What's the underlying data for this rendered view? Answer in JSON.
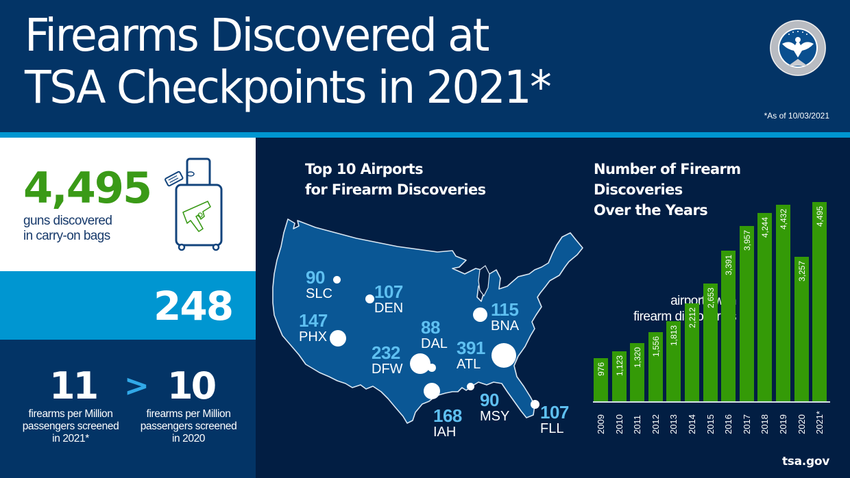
{
  "header": {
    "title_line1": "Firearms Discovered at",
    "title_line2": "TSA Checkpoints in 2021*",
    "as_of_note": "*As of 10/03/2021",
    "seal_text_top": "TRANSPORTATION SECURITY",
    "seal_text_bottom": "ADMINISTRATION"
  },
  "stats": {
    "guns_count": "4,495",
    "guns_label_line1": "guns discovered",
    "guns_label_line2": "in carry-on bags",
    "airports_label_line1": "airports with",
    "airports_label_line2": "firearm discoveries",
    "airports_count": "248",
    "rate_2021": "11",
    "comparison_symbol": ">",
    "rate_2020": "10",
    "rate_2021_line1": "firearms per Million",
    "rate_2021_line2": "passengers screened",
    "rate_2021_line3": "in 2021*",
    "rate_2020_line1": "firearms per Million",
    "rate_2020_line2": "passengers screened",
    "rate_2020_line3": "in 2020"
  },
  "map": {
    "title_line1": "Top 10 Airports",
    "title_line2": "for Firearm Discoveries",
    "airports": [
      {
        "code": "SLC",
        "count": "90"
      },
      {
        "code": "DEN",
        "count": "107"
      },
      {
        "code": "PHX",
        "count": "147"
      },
      {
        "code": "BNA",
        "count": "115"
      },
      {
        "code": "DAL",
        "count": "88"
      },
      {
        "code": "DFW",
        "count": "232"
      },
      {
        "code": "ATL",
        "count": "391"
      },
      {
        "code": "IAH",
        "count": "168"
      },
      {
        "code": "MSY",
        "count": "90"
      },
      {
        "code": "FLL",
        "count": "107"
      }
    ]
  },
  "chart_title": {
    "line1": "Number of Firearm",
    "line2": "Discoveries",
    "line3": "Over the Years"
  },
  "chart_data": [
    {
      "type": "bar",
      "title": "Number of Firearm Discoveries Over the Years",
      "categories": [
        "2009",
        "2010",
        "2011",
        "2012",
        "2013",
        "2014",
        "2015",
        "2016",
        "2017",
        "2018",
        "2019",
        "2020",
        "2021*"
      ],
      "values": [
        976,
        1123,
        1320,
        1556,
        1813,
        2212,
        2653,
        3391,
        3957,
        4244,
        4432,
        3257,
        4495
      ],
      "value_labels": [
        "976",
        "1,123",
        "1,320",
        "1,556",
        "1,813",
        "2,212",
        "2,653",
        "3,391",
        "3,957",
        "4,244",
        "4,432",
        "3,257",
        "4,495"
      ],
      "xlabel": "",
      "ylabel": "",
      "ylim": [
        0,
        4500
      ],
      "grid": false,
      "legend": "none",
      "bar_color": "#349a07"
    },
    {
      "type": "table",
      "title": "Top 10 Airports for Firearm Discoveries",
      "categories": [
        "ATL",
        "DFW",
        "IAH",
        "PHX",
        "BNA",
        "DEN",
        "FLL",
        "SLC",
        "MSY",
        "DAL"
      ],
      "values": [
        391,
        232,
        168,
        147,
        115,
        107,
        107,
        90,
        90,
        88
      ]
    }
  ],
  "footer": {
    "url": "tsa.gov"
  },
  "colors": {
    "header_navy": "#033466",
    "dark_navy": "#021e43",
    "accent_blue": "#0096d1",
    "map_blue": "#0a5795",
    "light_blue_text": "#5fc0f1",
    "green": "#3a9a17"
  }
}
